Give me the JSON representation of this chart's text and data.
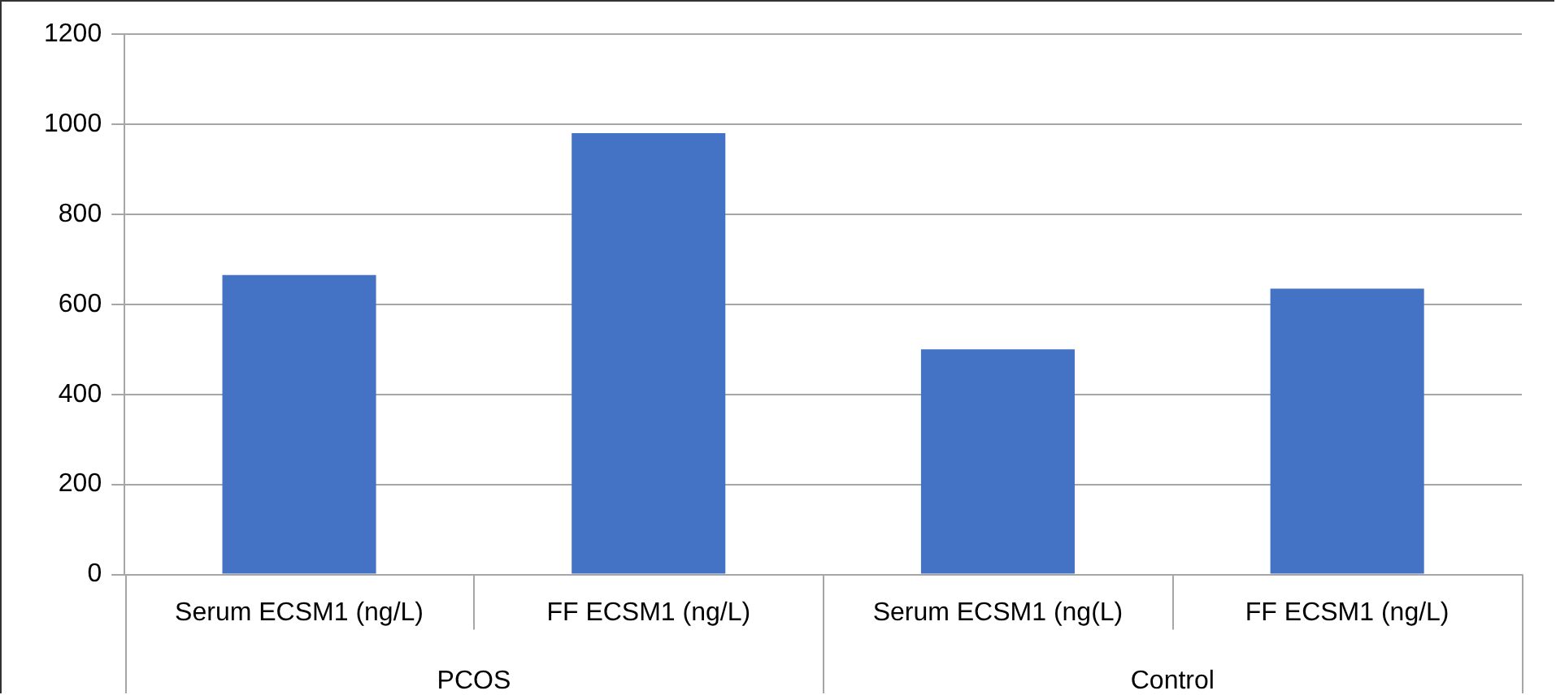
{
  "chart_data": {
    "type": "bar",
    "categories": [
      "Serum ECSM1 (ng/L)",
      "FF ECSM1 (ng/L)",
      "Serum ECSM1 (ng(L)",
      "FF ECSM1 (ng/L)"
    ],
    "values": [
      665,
      980,
      500,
      635
    ],
    "color": "#4472c4",
    "ylim": [
      0,
      1200
    ],
    "yticks": [
      0,
      200,
      400,
      600,
      800,
      1000,
      1200
    ],
    "grid": "y",
    "annotations": [
      "PCOS",
      "Control"
    ]
  }
}
